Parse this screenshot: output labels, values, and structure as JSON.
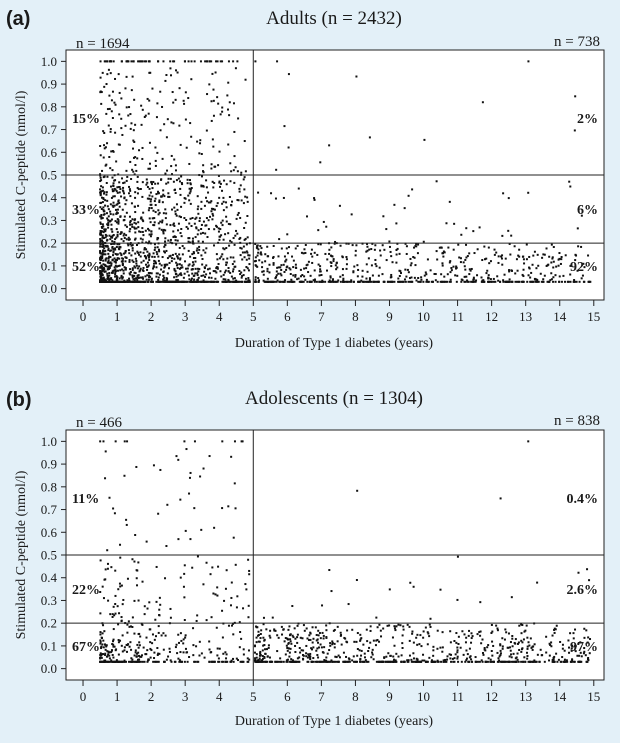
{
  "background_color": "#e3f0f8",
  "plot_color": "#ffffff",
  "point_color": "#111111",
  "chart_data": [
    {
      "type": "scatter",
      "panel_label": "(a)",
      "title": "Adults (n = 2432)",
      "xlabel": "Duration of Type 1 diabetes (years)",
      "ylabel": "Stimulated C-peptide (nmol/l)",
      "xlim": [
        -0.5,
        15.3
      ],
      "ylim": [
        -0.05,
        1.05
      ],
      "x_ticks": [
        0,
        1,
        2,
        3,
        4,
        5,
        6,
        7,
        8,
        9,
        10,
        11,
        12,
        13,
        14,
        15
      ],
      "y_ticks": [
        0.0,
        0.1,
        0.2,
        0.3,
        0.4,
        0.5,
        0.6,
        0.7,
        0.8,
        0.9,
        1.0
      ],
      "divider_x": 5,
      "divider_y": [
        0.2,
        0.5
      ],
      "n_left": "n = 1694",
      "n_right": "n = 738",
      "pct_left": [
        "15%",
        "33%",
        "52%"
      ],
      "pct_right": [
        "2%",
        "6%",
        "92%"
      ],
      "grid": false,
      "legend": "none",
      "point_distribution": {
        "x_range": [
          0.5,
          14.9
        ],
        "y_range": [
          0.0,
          1.0
        ],
        "n_total": 2432,
        "n_left_of_divider": 1694,
        "n_right_of_divider": 738,
        "share_left_by_band": {
          "above_0.5": 0.15,
          "between_0.2_and_0.5": 0.33,
          "below_0.2": 0.52
        },
        "share_right_by_band": {
          "above_0.5": 0.02,
          "between_0.2_and_0.5": 0.06,
          "below_0.2": 0.92
        },
        "baseline_y": 0.03,
        "ceiling_y": 1.0
      }
    },
    {
      "type": "scatter",
      "panel_label": "(b)",
      "title": "Adolescents (n = 1304)",
      "xlabel": "Duration of Type 1 diabetes (years)",
      "ylabel": "Stimulated C-peptide (nmol/l)",
      "xlim": [
        -0.5,
        15.3
      ],
      "ylim": [
        -0.05,
        1.05
      ],
      "x_ticks": [
        0,
        1,
        2,
        3,
        4,
        5,
        6,
        7,
        8,
        9,
        10,
        11,
        12,
        13,
        14,
        15
      ],
      "y_ticks": [
        0.0,
        0.1,
        0.2,
        0.3,
        0.4,
        0.5,
        0.6,
        0.7,
        0.8,
        0.9,
        1.0
      ],
      "divider_x": 5,
      "divider_y": [
        0.2,
        0.5
      ],
      "n_left": "n = 466",
      "n_right": "n = 838",
      "pct_left": [
        "11%",
        "22%",
        "67%"
      ],
      "pct_right": [
        "0.4%",
        "2.6%",
        "97%"
      ],
      "grid": false,
      "legend": "none",
      "point_distribution": {
        "x_range": [
          0.5,
          14.9
        ],
        "y_range": [
          0.0,
          1.0
        ],
        "n_total": 1304,
        "n_left_of_divider": 466,
        "n_right_of_divider": 838,
        "share_left_by_band": {
          "above_0.5": 0.11,
          "between_0.2_and_0.5": 0.22,
          "below_0.2": 0.67
        },
        "share_right_by_band": {
          "above_0.5": 0.004,
          "between_0.2_and_0.5": 0.026,
          "below_0.2": 0.97
        },
        "baseline_y": 0.03,
        "ceiling_y": 1.0
      }
    }
  ]
}
